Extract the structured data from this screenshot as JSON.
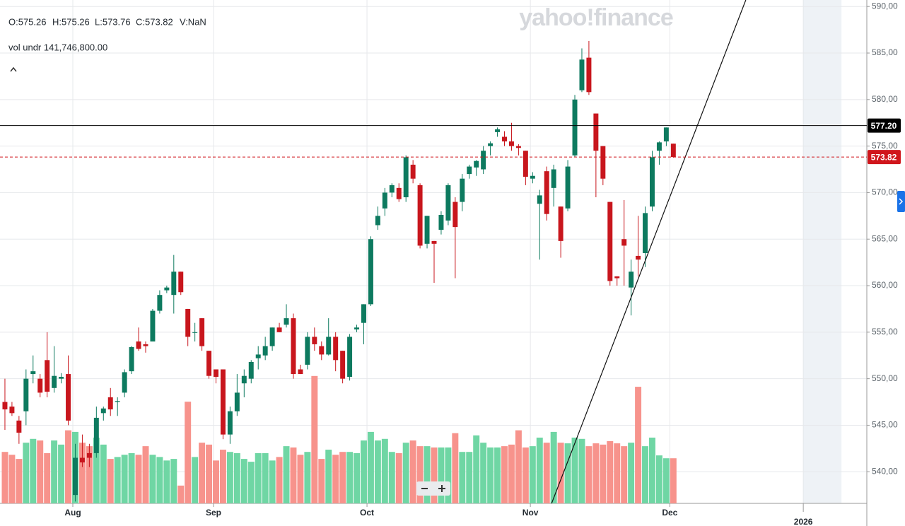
{
  "chart_data": {
    "type": "candlestick",
    "watermark": "yahoo!finance",
    "ohlc_legend": [
      "O:575.26",
      "H:575.26",
      "L:573.76",
      "C:573.82",
      "V:NaN"
    ],
    "volume_legend": "vol undr 141,746,800.00",
    "open": [
      547.5,
      547,
      545.5,
      546.5,
      550.5,
      550,
      552,
      549,
      550,
      550.5,
      537.5,
      541.5,
      542,
      542,
      546.3,
      548,
      547.5,
      548.5,
      550.8,
      554,
      553.7,
      554,
      557.3,
      559.5,
      559,
      561.5,
      557.5,
      555,
      556.5,
      553,
      551,
      551,
      544,
      546.5,
      549.5,
      550,
      552.2,
      552.5,
      553.5,
      555.5,
      555.8,
      556.5,
      551,
      551.5,
      554.5,
      553.5,
      552.6,
      554.5,
      553,
      550.2,
      555.3,
      556,
      558,
      566.5,
      568.3,
      570,
      570.5,
      569.5,
      573,
      570.8,
      564.5,
      564.8,
      566,
      567,
      569,
      569,
      572,
      572.7,
      572.5,
      575,
      576.5,
      576,
      575.5,
      575,
      574.5,
      571.5,
      568.8,
      572.3,
      570.5,
      568.5,
      568.3,
      574,
      581,
      584.5,
      578.5,
      575,
      569,
      561,
      565,
      559.8,
      563.2,
      563.5,
      568.5,
      574.5,
      575.5,
      575.26
    ],
    "high": [
      550,
      547.5,
      546,
      551,
      552.5,
      550.5,
      555,
      553.5,
      550.6,
      552.5,
      543,
      544,
      543,
      547,
      547,
      549,
      548,
      551,
      553.5,
      555.5,
      554,
      557.5,
      559.5,
      560,
      563.3,
      561.5,
      557.5,
      556,
      556.5,
      553,
      551,
      551,
      547,
      550.5,
      551,
      552,
      553.5,
      554.5,
      555.5,
      556,
      558,
      557,
      551.5,
      555,
      555.5,
      554,
      556.5,
      555,
      553,
      554.8,
      555.8,
      558,
      565.3,
      568.5,
      570.5,
      571,
      571,
      574,
      573.5,
      571,
      567.5,
      564.8,
      568,
      571,
      569.5,
      572,
      573,
      573.5,
      575,
      575.5,
      577,
      576.6,
      577.5,
      575.2,
      574.5,
      572.2,
      570.3,
      572.8,
      573,
      568.5,
      573.5,
      580.5,
      585.5,
      586.3,
      578.5,
      575,
      569,
      561,
      569.2,
      562.8,
      567.5,
      568.5,
      574.5,
      575.5,
      577,
      575.26
    ],
    "low": [
      544.5,
      546,
      543,
      545,
      549.5,
      548,
      548,
      548.5,
      549.5,
      545,
      536.8,
      540.5,
      540.5,
      541.5,
      545.5,
      546,
      546,
      548,
      550.5,
      553,
      552.8,
      554,
      557,
      559.2,
      557,
      559,
      553.5,
      554,
      553,
      550,
      549.5,
      543.5,
      543,
      546,
      548,
      549.5,
      551,
      552,
      553,
      555,
      555.5,
      550,
      550.5,
      551,
      553,
      552,
      552.5,
      550.8,
      549.5,
      549.8,
      555,
      553.7,
      557.8,
      566,
      567.5,
      569.5,
      569,
      569,
      571,
      564,
      564,
      560.3,
      565.5,
      566.5,
      560.8,
      568,
      571.5,
      571.8,
      572,
      574,
      576,
      575,
      574.5,
      574,
      570.8,
      571,
      562.8,
      567,
      568.5,
      563,
      568,
      573.8,
      580.8,
      580.5,
      569.5,
      570.8,
      560,
      560,
      560,
      556.8,
      561,
      562,
      568,
      573,
      575,
      573.76
    ],
    "close": [
      546.7,
      546.3,
      544.2,
      550,
      550.8,
      548.5,
      548.6,
      550.3,
      550.2,
      545.5,
      541.5,
      541,
      541.5,
      545.8,
      546.8,
      546.7,
      547.6,
      550.7,
      553.4,
      553.2,
      553.5,
      557.3,
      559,
      559.8,
      561.5,
      559.3,
      554.5,
      555,
      553.5,
      550.3,
      550.2,
      544,
      546.5,
      548.5,
      550.3,
      551.8,
      552.6,
      553.5,
      555.5,
      555,
      556.5,
      550.5,
      550.5,
      554.5,
      553.7,
      552.6,
      554.5,
      552,
      550,
      554.5,
      555.5,
      558,
      565,
      567.5,
      570,
      570.8,
      569.3,
      573.8,
      571.5,
      564.3,
      567.5,
      564.5,
      567.6,
      570.8,
      566.3,
      571.5,
      572.8,
      573.4,
      574.5,
      575.3,
      576.8,
      575.5,
      575,
      574.8,
      571.7,
      571.8,
      569.7,
      567.7,
      572.5,
      564.8,
      572.8,
      580,
      584.3,
      580.8,
      574.5,
      571.5,
      560.5,
      560.8,
      564.3,
      561.5,
      562.8,
      567.8,
      573.8,
      575.4,
      577,
      573.82
    ],
    "volume": [
      162,
      153,
      140,
      191,
      203,
      198,
      158,
      198,
      185,
      230,
      225,
      191,
      180,
      207,
      185,
      140,
      146,
      153,
      158,
      153,
      180,
      153,
      146,
      135,
      140,
      56,
      320,
      146,
      191,
      185,
      135,
      169,
      162,
      158,
      140,
      131,
      158,
      158,
      135,
      146,
      180,
      176,
      153,
      162,
      401,
      140,
      169,
      153,
      162,
      162,
      158,
      198,
      225,
      198,
      203,
      162,
      158,
      191,
      198,
      180,
      180,
      176,
      176,
      176,
      221,
      162,
      162,
      214,
      191,
      176,
      176,
      180,
      185,
      230,
      176,
      180,
      207,
      191,
      225,
      191,
      189,
      207,
      203,
      180,
      189,
      185,
      196,
      189,
      180,
      191,
      367,
      180,
      207,
      151,
      142,
      142
    ],
    "up_color": "#0d7a5f",
    "down_color": "#c8161d",
    "up_volume_color": "#6fd6a4",
    "down_volume_color": "#f7938c",
    "volume_lim": [
      0,
      405
    ],
    "xlim": [
      -0.7,
      122.5
    ],
    "xticks": [
      {
        "value": 9.65,
        "label": "Aug"
      },
      {
        "value": 29.65,
        "label": "Sep"
      },
      {
        "value": 51.46,
        "label": "Oct"
      },
      {
        "value": 74.68,
        "label": "Nov"
      },
      {
        "value": 94.5,
        "label": "Dec"
      },
      {
        "value": 113.47,
        "label": "2026"
      }
    ],
    "ylim": [
      536.6,
      590.7
    ],
    "yticks": [
      {
        "value": 540,
        "label": "540,00"
      },
      {
        "value": 545,
        "label": "545,00"
      },
      {
        "value": 550,
        "label": "550,00"
      },
      {
        "value": 555,
        "label": "555,00"
      },
      {
        "value": 560,
        "label": "560,00"
      },
      {
        "value": 565,
        "label": "565,00"
      },
      {
        "value": 570,
        "label": "570,00"
      },
      {
        "value": 575,
        "label": "575,00"
      },
      {
        "value": 580,
        "label": "580,00"
      },
      {
        "value": 585,
        "label": "585,00"
      },
      {
        "value": 590,
        "label": "590,00"
      }
    ],
    "grid": true,
    "hlines": [
      {
        "value": 577.2,
        "label": "577.20",
        "color": "#000000",
        "dashed": false
      },
      {
        "value": 573.82,
        "label": "573.82",
        "color": "#d0161c",
        "dashed": true
      }
    ],
    "trendline": {
      "x": [
        77.7,
        105.3
      ],
      "y": [
        536.6,
        590.7
      ]
    },
    "shaded_x": [
      113.5,
      118.9
    ]
  }
}
